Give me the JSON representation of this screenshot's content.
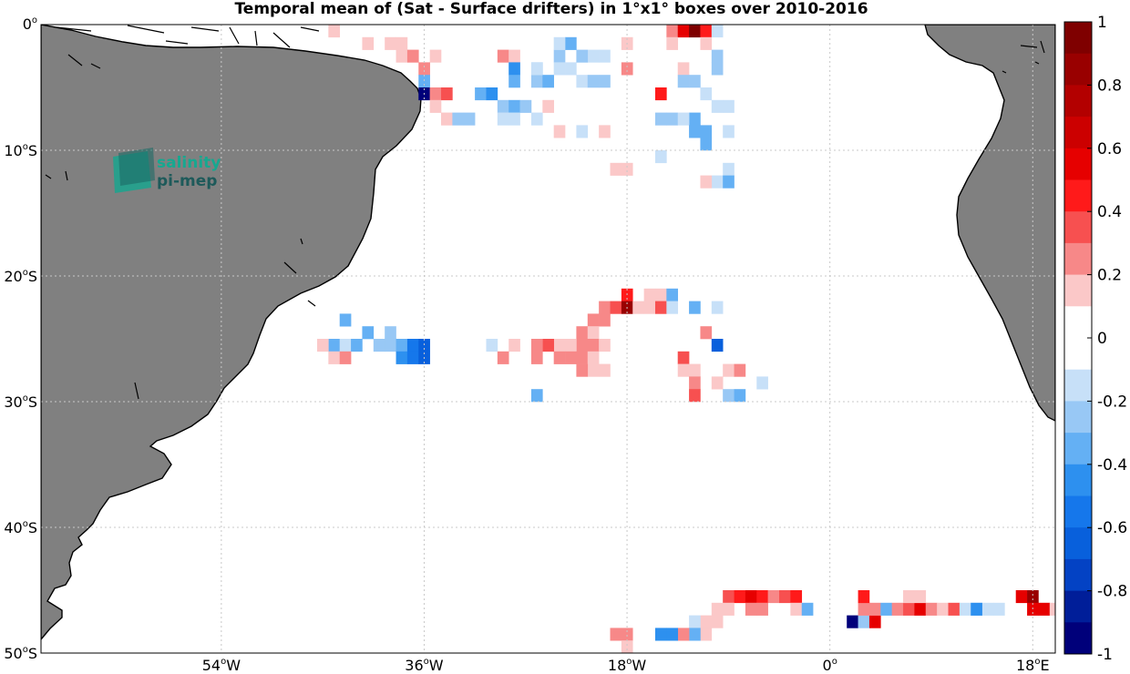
{
  "title": "Temporal mean of (Sat - Surface drifters) in 1°x1° boxes over 2010-2016",
  "logo": {
    "line1": "salinity",
    "line2": "pi-mep",
    "color1": "#16a890",
    "color2": "#1d5a5a"
  },
  "colors": {
    "land": "#808080",
    "coast": "#000000",
    "grid": "#c8c8c8",
    "ocean": "#ffffff"
  },
  "chart_data": {
    "type": "heatmap",
    "map_extent": {
      "lon": [
        -70,
        20
      ],
      "lat": [
        -50,
        0
      ]
    },
    "x_ticks": [
      {
        "lon": -54,
        "deg": "54",
        "hemi": "W"
      },
      {
        "lon": -36,
        "deg": "36",
        "hemi": "W"
      },
      {
        "lon": -18,
        "deg": "18",
        "hemi": "W"
      },
      {
        "lon": 0,
        "deg": "0",
        "hemi": ""
      },
      {
        "lon": 18,
        "deg": "18",
        "hemi": "E"
      }
    ],
    "y_ticks": [
      {
        "lat": 0,
        "deg": "0",
        "hemi": ""
      },
      {
        "lat": -10,
        "deg": "10",
        "hemi": "S"
      },
      {
        "lat": -20,
        "deg": "20",
        "hemi": "S"
      },
      {
        "lat": -30,
        "deg": "30",
        "hemi": "S"
      },
      {
        "lat": -40,
        "deg": "40",
        "hemi": "S"
      },
      {
        "lat": -50,
        "deg": "50",
        "hemi": "S"
      }
    ],
    "colorbar": {
      "range": [
        -1,
        1
      ],
      "tick_labels": [
        "1",
        "0.8",
        "0.6",
        "0.4",
        "0.2",
        "0",
        "-0.2",
        "-0.4",
        "-0.6",
        "-0.8",
        "-1"
      ],
      "levels": [
        "#7f0000",
        "#990000",
        "#b30000",
        "#cc0000",
        "#e60000",
        "#ff1a1a",
        "#f75050",
        "#f78888",
        "#fbc8c8",
        "#ffffff",
        "#ffffff",
        "#c7e0f8",
        "#98c8f5",
        "#64b0f4",
        "#2d90ef",
        "#1577eb",
        "#0860dc",
        "#0342c4",
        "#001e99",
        "#00007a"
      ]
    },
    "grid_boxes": [
      [
        -44,
        -0.5,
        0.2
      ],
      [
        -41,
        -1.5,
        0.2
      ],
      [
        -39,
        -1.5,
        0.2
      ],
      [
        -38,
        -1.5,
        0.2
      ],
      [
        -38,
        -2.5,
        0.2
      ],
      [
        -37,
        -2.5,
        0.3
      ],
      [
        -35,
        -2.5,
        0.2
      ],
      [
        -36,
        -3.5,
        0.3
      ],
      [
        -36,
        -4.5,
        -0.3
      ],
      [
        -36,
        -5.5,
        -0.9
      ],
      [
        -35,
        -5.5,
        0.3
      ],
      [
        -34,
        -5.5,
        0.4
      ],
      [
        -35,
        -6.5,
        0.2
      ],
      [
        -34,
        -7.5,
        0.2
      ],
      [
        -33,
        -7.5,
        -0.2
      ],
      [
        -32,
        -7.5,
        -0.2
      ],
      [
        -31,
        -5.5,
        -0.3
      ],
      [
        -30,
        -5.5,
        -0.4
      ],
      [
        -29,
        -6.5,
        -0.2
      ],
      [
        -28,
        -6.5,
        -0.3
      ],
      [
        -29,
        -7.5,
        -0.1
      ],
      [
        -28,
        -7.5,
        -0.1
      ],
      [
        -27,
        -6.5,
        -0.2
      ],
      [
        -26,
        -7.5,
        -0.1
      ],
      [
        -25,
        -6.5,
        0.2
      ],
      [
        -24,
        -8.5,
        0.2
      ],
      [
        -22,
        -8.5,
        -0.1
      ],
      [
        -20,
        -8.5,
        0.2
      ],
      [
        -29,
        -2.5,
        0.3
      ],
      [
        -28,
        -2.5,
        0.2
      ],
      [
        -28,
        -3.5,
        -0.4
      ],
      [
        -26,
        -3.5,
        -0.2
      ],
      [
        -28,
        -4.5,
        -0.3
      ],
      [
        -26,
        -4.5,
        -0.2
      ],
      [
        -25,
        -4.5,
        -0.3
      ],
      [
        -24,
        -2.5,
        -0.2
      ],
      [
        -24,
        -3.5,
        -0.1
      ],
      [
        -23,
        -3.5,
        -0.1
      ],
      [
        -22,
        -4.5,
        -0.1
      ],
      [
        -21,
        -2.5,
        -0.1
      ],
      [
        -22,
        -2.5,
        -0.2
      ],
      [
        -20,
        -2.5,
        -0.1
      ],
      [
        -21,
        -4.5,
        -0.2
      ],
      [
        -20,
        -4.5,
        -0.2
      ],
      [
        -23,
        -1.5,
        -0.3
      ],
      [
        -24,
        -1.5,
        -0.1
      ],
      [
        -26,
        -3.5,
        -0.1
      ],
      [
        -18,
        -3.5,
        0.3
      ],
      [
        -18,
        -1.5,
        0.2
      ],
      [
        -14,
        -0.5,
        0.3
      ],
      [
        -13,
        -0.5,
        0.6
      ],
      [
        -12,
        -0.5,
        0.9
      ],
      [
        -11,
        -0.5,
        0.5
      ],
      [
        -10,
        -0.5,
        -0.1
      ],
      [
        -14,
        -1.5,
        0.2
      ],
      [
        -11,
        -1.5,
        0.2
      ],
      [
        -10,
        -2.5,
        -0.2
      ],
      [
        -10,
        -3.5,
        -0.2
      ],
      [
        -13,
        -3.5,
        0.2
      ],
      [
        -12,
        -4.5,
        -0.2
      ],
      [
        -13,
        -4.5,
        -0.2
      ],
      [
        -15,
        -5.5,
        0.5
      ],
      [
        -11,
        -5.5,
        -0.1
      ],
      [
        -10,
        -6.5,
        -0.1
      ],
      [
        -9,
        -6.5,
        -0.1
      ],
      [
        -15,
        -7.5,
        -0.2
      ],
      [
        -14,
        -7.5,
        -0.2
      ],
      [
        -12,
        -7.5,
        -0.3
      ],
      [
        -13,
        -7.5,
        -0.1
      ],
      [
        -12,
        -8.5,
        -0.3
      ],
      [
        -11,
        -8.5,
        -0.3
      ],
      [
        -9,
        -8.5,
        -0.1
      ],
      [
        -11,
        -9.5,
        -0.3
      ],
      [
        -15,
        -10.5,
        -0.1
      ],
      [
        -19,
        -11.5,
        0.2
      ],
      [
        -18,
        -11.5,
        0.2
      ],
      [
        -9,
        -11.5,
        -0.1
      ],
      [
        -10,
        -12.5,
        -0.1
      ],
      [
        -9,
        -12.5,
        -0.3
      ],
      [
        -11,
        -12.5,
        0.2
      ],
      [
        -18,
        -21.5,
        0.5
      ],
      [
        -16,
        -21.5,
        0.2
      ],
      [
        -15,
        -21.5,
        0.2
      ],
      [
        -14,
        -21.5,
        -0.3
      ],
      [
        -20,
        -22.5,
        0.3
      ],
      [
        -19,
        -22.5,
        0.4
      ],
      [
        -18,
        -22.5,
        0.8
      ],
      [
        -17,
        -22.5,
        0.2
      ],
      [
        -16,
        -22.5,
        0.2
      ],
      [
        -15,
        -22.5,
        0.4
      ],
      [
        -14,
        -22.5,
        -0.1
      ],
      [
        -12,
        -22.5,
        -0.3
      ],
      [
        -10,
        -22.5,
        -0.1
      ],
      [
        -21,
        -23.5,
        0.3
      ],
      [
        -20,
        -23.5,
        0.3
      ],
      [
        -22,
        -24.5,
        0.3
      ],
      [
        -21,
        -24.5,
        0.2
      ],
      [
        -11,
        -24.5,
        0.3
      ],
      [
        -22,
        -25.5,
        0.3
      ],
      [
        -21,
        -25.5,
        0.3
      ],
      [
        -20,
        -25.5,
        0.2
      ],
      [
        -23,
        -25.5,
        0.2
      ],
      [
        -24,
        -25.5,
        0.2
      ],
      [
        -25,
        -25.5,
        0.4
      ],
      [
        -26,
        -25.5,
        0.3
      ],
      [
        -22,
        -26.5,
        0.3
      ],
      [
        -23,
        -26.5,
        0.3
      ],
      [
        -24,
        -26.5,
        0.3
      ],
      [
        -26,
        -26.5,
        0.3
      ],
      [
        -21,
        -26.5,
        0.2
      ],
      [
        -21,
        -27.5,
        0.2
      ],
      [
        -20,
        -27.5,
        0.2
      ],
      [
        -22,
        -27.5,
        0.3
      ],
      [
        -26,
        -29.5,
        -0.3
      ],
      [
        -13,
        -26.5,
        0.4
      ],
      [
        -10,
        -25.5,
        -0.6
      ],
      [
        -13,
        -27.5,
        0.2
      ],
      [
        -12,
        -27.5,
        0.2
      ],
      [
        -12,
        -28.5,
        0.3
      ],
      [
        -10,
        -28.5,
        0.2
      ],
      [
        -9,
        -27.5,
        0.2
      ],
      [
        -8,
        -27.5,
        0.3
      ],
      [
        -12,
        -29.5,
        0.4
      ],
      [
        -9,
        -29.5,
        -0.2
      ],
      [
        -8,
        -29.5,
        -0.3
      ],
      [
        -6,
        -28.5,
        -0.1
      ],
      [
        -30,
        -25.5,
        -0.1
      ],
      [
        -28,
        -25.5,
        0.2
      ],
      [
        -29,
        -26.5,
        0.3
      ],
      [
        -43,
        -23.5,
        -0.3
      ],
      [
        -41,
        -24.5,
        -0.3
      ],
      [
        -39,
        -24.5,
        -0.2
      ],
      [
        -44,
        -25.5,
        -0.3
      ],
      [
        -43,
        -25.5,
        -0.1
      ],
      [
        -42,
        -25.5,
        -0.3
      ],
      [
        -40,
        -25.5,
        -0.2
      ],
      [
        -39,
        -25.5,
        -0.2
      ],
      [
        -38,
        -25.5,
        -0.3
      ],
      [
        -37,
        -25.5,
        -0.5
      ],
      [
        -36,
        -25.5,
        -0.6
      ],
      [
        -44,
        -26.5,
        0.2
      ],
      [
        -43,
        -26.5,
        0.3
      ],
      [
        -38,
        -26.5,
        -0.4
      ],
      [
        -37,
        -26.5,
        -0.5
      ],
      [
        -36,
        -26.5,
        -0.6
      ],
      [
        -45,
        -25.5,
        0.2
      ],
      [
        -9,
        -45.5,
        0.4
      ],
      [
        -8,
        -45.5,
        0.5
      ],
      [
        -7,
        -45.5,
        0.6
      ],
      [
        -6,
        -45.5,
        0.5
      ],
      [
        -5,
        -45.5,
        0.3
      ],
      [
        -4,
        -45.5,
        0.4
      ],
      [
        -3,
        -45.5,
        0.5
      ],
      [
        -9,
        -46.5,
        0.2
      ],
      [
        -10,
        -46.5,
        0.2
      ],
      [
        -7,
        -46.5,
        0.3
      ],
      [
        -6,
        -46.5,
        0.3
      ],
      [
        -3,
        -46.5,
        0.2
      ],
      [
        -2,
        -46.5,
        -0.3
      ],
      [
        -11,
        -47.5,
        0.2
      ],
      [
        -12,
        -47.5,
        -0.1
      ],
      [
        -10,
        -47.5,
        0.2
      ],
      [
        -11,
        -48.5,
        0.2
      ],
      [
        -12,
        -48.5,
        -0.3
      ],
      [
        -13,
        -48.5,
        0.3
      ],
      [
        -14,
        -48.5,
        -0.4
      ],
      [
        -15,
        -48.5,
        -0.4
      ],
      [
        -18,
        -48.5,
        0.3
      ],
      [
        -19,
        -48.5,
        0.3
      ],
      [
        -18,
        -49.5,
        0.2
      ],
      [
        2,
        -47.5,
        -0.9
      ],
      [
        3,
        -47.5,
        -0.2
      ],
      [
        4,
        -47.5,
        0.6
      ],
      [
        3,
        -46.5,
        0.3
      ],
      [
        4,
        -46.5,
        0.3
      ],
      [
        5,
        -46.5,
        -0.3
      ],
      [
        6,
        -46.5,
        0.3
      ],
      [
        7,
        -46.5,
        0.4
      ],
      [
        8,
        -46.5,
        0.6
      ],
      [
        9,
        -46.5,
        0.3
      ],
      [
        10,
        -46.5,
        0.2
      ],
      [
        11,
        -46.5,
        0.4
      ],
      [
        3,
        -45.5,
        0.5
      ],
      [
        7,
        -45.5,
        0.2
      ],
      [
        8,
        -45.5,
        0.2
      ],
      [
        12,
        -46.5,
        -0.1
      ],
      [
        13,
        -46.5,
        -0.1
      ],
      [
        14,
        -46.5,
        -0.1
      ],
      [
        15,
        -46.5,
        -0.1
      ],
      [
        17,
        -45.5,
        0.6
      ],
      [
        18,
        -45.5,
        0.8
      ],
      [
        18,
        -46.5,
        0.6
      ],
      [
        19,
        -46.5,
        0.6
      ],
      [
        20,
        -46.5,
        0.2
      ],
      [
        13,
        -46.5,
        -0.4
      ]
    ]
  }
}
